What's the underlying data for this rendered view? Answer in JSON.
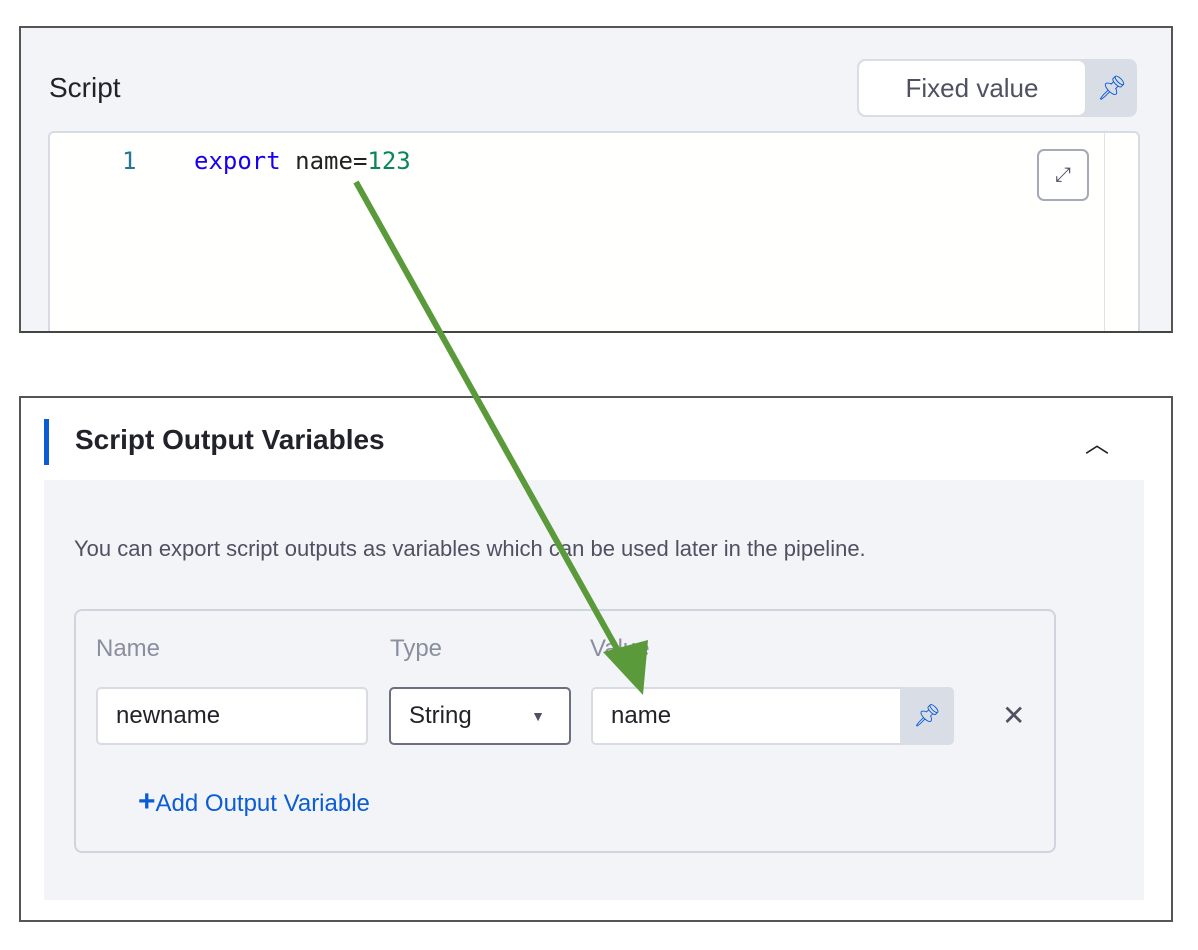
{
  "script_section": {
    "label": "Script",
    "mode_button": "Fixed value",
    "pin_icon": "pin-icon",
    "editor": {
      "line_number": "1",
      "keyword": "export",
      "identifier": " name=",
      "value": "123"
    },
    "expand_icon": "expand-icon"
  },
  "output_section": {
    "title": "Script Output Variables",
    "collapse_icon": "chevron-up-icon",
    "description": "You can export script outputs as variables which can be used later in the pipeline.",
    "columns": [
      "Name",
      "Type",
      "Value"
    ],
    "rows": [
      {
        "name": "newname",
        "type": "String",
        "value": "name"
      }
    ],
    "add_label": "Add Output Variable",
    "add_icon": "+",
    "remove_icon": "✕"
  },
  "annotation": {
    "arrow_color": "#5a9a3a"
  },
  "colors": {
    "accent": "#0b5cd5",
    "keyword": "#1a00f0",
    "number": "#098658"
  }
}
